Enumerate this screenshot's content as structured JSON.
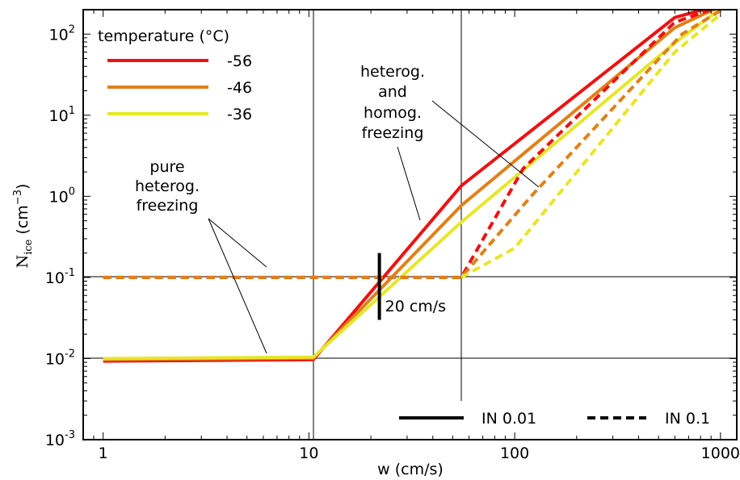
{
  "chart_data": {
    "type": "line",
    "xlabel": "w (cm/s)",
    "ylabel": {
      "base": "N",
      "sub": "ice",
      "unit_pre": " (cm",
      "unit_sup": "−3",
      "unit_post": ")"
    },
    "xscale": "log",
    "yscale": "log",
    "xlim": [
      0.8,
      1200
    ],
    "ylim": [
      0.001,
      200
    ],
    "x_ticks": [
      {
        "v": 1,
        "label": "1"
      },
      {
        "v": 10,
        "label": "10"
      },
      {
        "v": 100,
        "label": "100"
      },
      {
        "v": 1000,
        "label": "1000"
      }
    ],
    "y_ticks": [
      {
        "v": 0.001,
        "base": "10",
        "exp": "-3"
      },
      {
        "v": 0.01,
        "base": "10",
        "exp": "-2"
      },
      {
        "v": 0.1,
        "base": "10",
        "exp": "-1"
      },
      {
        "v": 1,
        "base": "10",
        "exp": "0"
      },
      {
        "v": 10,
        "base": "10",
        "exp": "1"
      },
      {
        "v": 100,
        "base": "10",
        "exp": "2"
      }
    ],
    "reference_lines": {
      "vertical": [
        10.5,
        55
      ],
      "horizontal": [
        0.01,
        0.1
      ]
    },
    "legend_temperature": {
      "title": "temperature (°C)",
      "placement": "top-left",
      "entries": [
        {
          "label": "-56",
          "color": "#ee1111"
        },
        {
          "label": "-46",
          "color": "#e08018"
        },
        {
          "label": "-36",
          "color": "#e6e62a"
        }
      ]
    },
    "legend_in": {
      "placement": "bottom-right",
      "entries": [
        {
          "label": "IN 0.01",
          "style": "solid"
        },
        {
          "label": "IN 0.1",
          "style": "dashed"
        }
      ]
    },
    "series": [
      {
        "name": "-56",
        "in": "IN 0.01",
        "style": "solid",
        "color": "#ee1111",
        "points": [
          [
            1,
            0.0093
          ],
          [
            10.5,
            0.0097
          ],
          [
            55,
            1.35
          ],
          [
            600,
            160
          ],
          [
            1000,
            230
          ]
        ]
      },
      {
        "name": "-46",
        "in": "IN 0.01",
        "style": "solid",
        "color": "#e08018",
        "points": [
          [
            1,
            0.0097
          ],
          [
            10.5,
            0.0101
          ],
          [
            55,
            0.77
          ],
          [
            600,
            120
          ],
          [
            1000,
            220
          ]
        ]
      },
      {
        "name": "-36",
        "in": "IN 0.01",
        "style": "solid",
        "color": "#e6e62a",
        "points": [
          [
            1,
            0.01
          ],
          [
            10.5,
            0.0104
          ],
          [
            55,
            0.48
          ],
          [
            600,
            78
          ],
          [
            1000,
            205
          ]
        ]
      },
      {
        "name": "-56",
        "in": "IN 0.1",
        "style": "dashed",
        "color": "#ee1111",
        "points": [
          [
            1,
            0.1
          ],
          [
            55,
            0.1
          ],
          [
            110,
            2.2
          ],
          [
            600,
            140
          ],
          [
            1000,
            220
          ]
        ]
      },
      {
        "name": "-46",
        "in": "IN 0.1",
        "style": "dashed",
        "color": "#e08018",
        "points": [
          [
            1,
            0.1
          ],
          [
            55,
            0.1
          ],
          [
            120,
            1.0
          ],
          [
            650,
            100
          ],
          [
            1000,
            195
          ]
        ]
      },
      {
        "name": "-36",
        "in": "IN 0.1",
        "style": "dashed",
        "color": "#e6e62a",
        "points": [
          [
            55,
            0.1
          ],
          [
            100,
            0.23
          ],
          [
            600,
            60
          ],
          [
            1000,
            175
          ]
        ]
      }
    ],
    "annotations": {
      "pure": [
        "pure",
        "heterog.",
        "freezing"
      ],
      "hetero_homo": [
        "heterog.",
        "and",
        "homog.",
        "freezing"
      ],
      "marker": {
        "label": "20 cm/s",
        "x": 22,
        "y_range": [
          0.03,
          0.2
        ]
      }
    }
  }
}
